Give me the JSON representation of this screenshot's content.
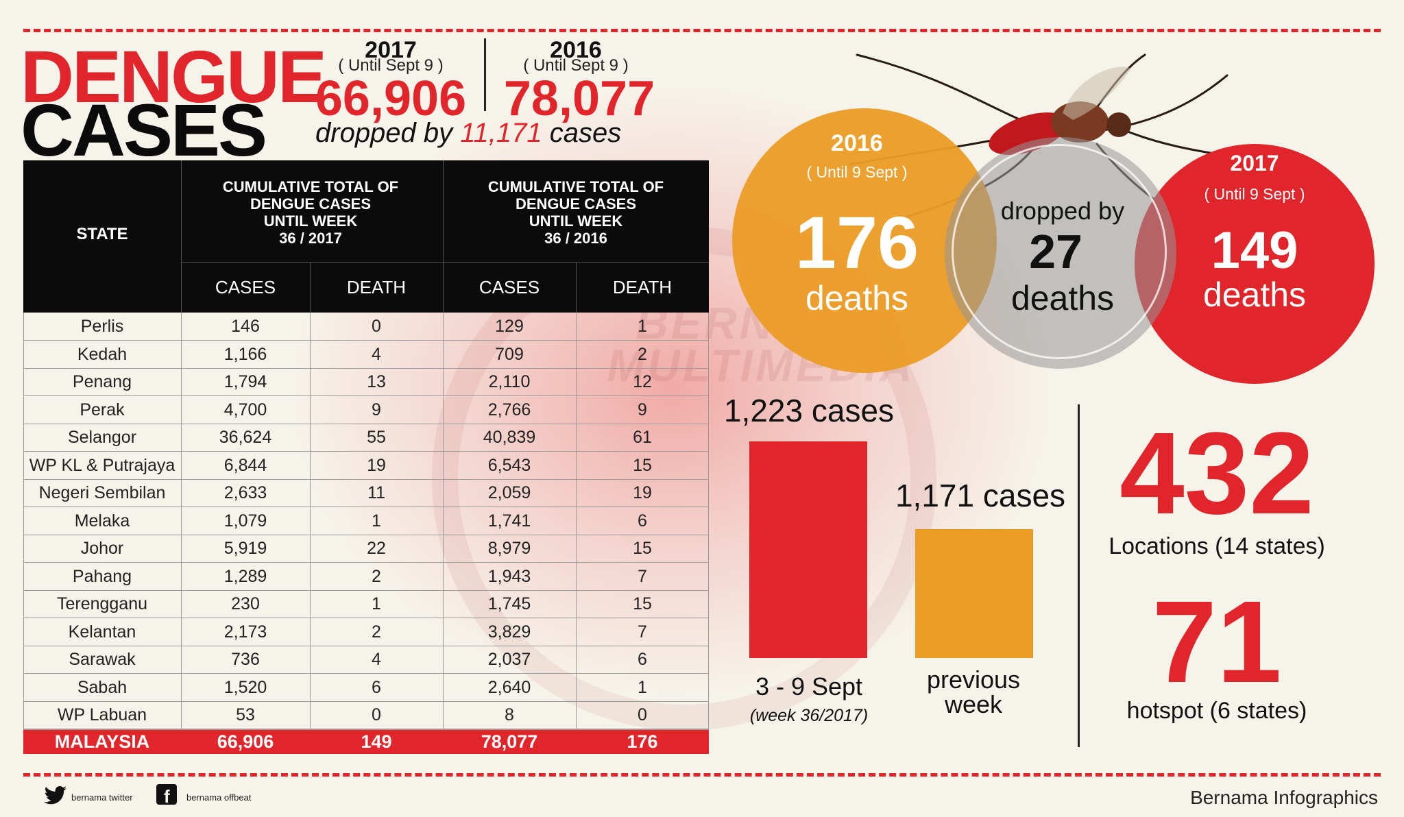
{
  "header": {
    "title_line1": "DENGUE",
    "title_line2": "CASES",
    "y2017": {
      "year": "2017",
      "until": "( Until Sept 9 )",
      "cases": "66,906"
    },
    "y2016": {
      "year": "2016",
      "until": "( Until Sept 9 )",
      "cases": "78,077"
    },
    "dropped_prefix": "dropped by",
    "dropped_number": "11,171",
    "dropped_suffix": "cases"
  },
  "table": {
    "state_header": "STATE",
    "group_2017": [
      "CUMULATIVE TOTAL OF",
      "DENGUE CASES",
      "UNTIL WEEK",
      "36 / 2017"
    ],
    "group_2016": [
      "CUMULATIVE TOTAL OF",
      "DENGUE CASES",
      "UNTIL WEEK",
      "36 / 2016"
    ],
    "sub_headers": [
      "CASES",
      "DEATH",
      "CASES",
      "DEATH"
    ],
    "rows": [
      {
        "state": "Perlis",
        "c17": "146",
        "d17": "0",
        "c16": "129",
        "d16": "1"
      },
      {
        "state": "Kedah",
        "c17": "1,166",
        "d17": "4",
        "c16": "709",
        "d16": "2"
      },
      {
        "state": "Penang",
        "c17": "1,794",
        "d17": "13",
        "c16": "2,110",
        "d16": "12"
      },
      {
        "state": "Perak",
        "c17": "4,700",
        "d17": "9",
        "c16": "2,766",
        "d16": "9"
      },
      {
        "state": "Selangor",
        "c17": "36,624",
        "d17": "55",
        "c16": "40,839",
        "d16": "61"
      },
      {
        "state": "WP KL & Putrajaya",
        "c17": "6,844",
        "d17": "19",
        "c16": "6,543",
        "d16": "15"
      },
      {
        "state": "Negeri Sembilan",
        "c17": "2,633",
        "d17": "11",
        "c16": "2,059",
        "d16": "19"
      },
      {
        "state": "Melaka",
        "c17": "1,079",
        "d17": "1",
        "c16": "1,741",
        "d16": "6"
      },
      {
        "state": "Johor",
        "c17": "5,919",
        "d17": "22",
        "c16": "8,979",
        "d16": "15"
      },
      {
        "state": "Pahang",
        "c17": "1,289",
        "d17": "2",
        "c16": "1,943",
        "d16": "7"
      },
      {
        "state": "Terengganu",
        "c17": "230",
        "d17": "1",
        "c16": "1,745",
        "d16": "15"
      },
      {
        "state": "Kelantan",
        "c17": "2,173",
        "d17": "2",
        "c16": "3,829",
        "d16": "7"
      },
      {
        "state": "Sarawak",
        "c17": "736",
        "d17": "4",
        "c16": "2,037",
        "d16": "6"
      },
      {
        "state": "Sabah",
        "c17": "1,520",
        "d17": "6",
        "c16": "2,640",
        "d16": "1"
      },
      {
        "state": "WP Labuan",
        "c17": "53",
        "d17": "0",
        "c16": "8",
        "d16": "0"
      }
    ],
    "total": {
      "state": "MALAYSIA",
      "c17": "66,906",
      "d17": "149",
      "c16": "78,077",
      "d16": "176"
    }
  },
  "deaths": {
    "left": {
      "year": "2016",
      "until": "( Until 9 Sept )",
      "number": "176",
      "label": "deaths"
    },
    "middle": {
      "prefix": "dropped by",
      "number": "27",
      "label": "deaths"
    },
    "right": {
      "year": "2017",
      "until": "( Until 9 Sept )",
      "number": "149",
      "label": "deaths"
    }
  },
  "chart_data": {
    "type": "bar",
    "categories": [
      "3 - 9 Sept",
      "previous week"
    ],
    "values": [
      1223,
      1171
    ],
    "value_labels": [
      "1,223 cases",
      "1,171 cases"
    ],
    "subtitle": "(week 36/2017)",
    "category_line1": [
      "3 - 9 Sept",
      "previous"
    ],
    "category_line2": [
      "",
      "week"
    ],
    "colors": [
      "#e0252b",
      "#eb9c25"
    ]
  },
  "stats": {
    "locations_number": "432",
    "locations_label": "Locations (14 states)",
    "hotspot_number": "71",
    "hotspot_label": "hotspot (6 states)"
  },
  "footer": {
    "twitter": "bernama twitter",
    "facebook": "bernama offbeat",
    "brand": "Bernama Infographics"
  },
  "watermark": [
    "BERNAMA",
    "MULTIMEDIA"
  ],
  "colors": {
    "red": "#e0252b",
    "orange": "#eb9c25",
    "grey": "#8f8f8f",
    "black": "#0b0b0b"
  }
}
